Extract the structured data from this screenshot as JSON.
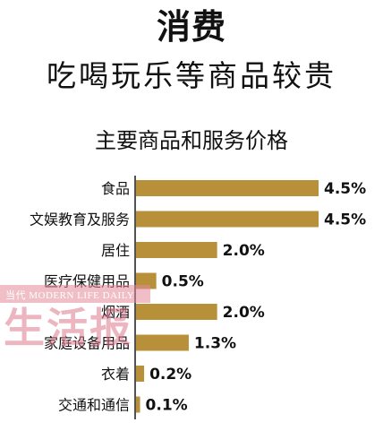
{
  "title": "消费",
  "subtitle": "吃喝玩乐等商品较贵",
  "watermark": {
    "small_text": "当代 MODERN LIFE DAILY",
    "big_text": "生活报"
  },
  "colors": {
    "bar": "#b8903a",
    "text": "#111111",
    "axis": "#1a1a1a"
  },
  "chart_data": {
    "type": "bar",
    "orientation": "horizontal",
    "title": "主要商品和服务价格",
    "xlabel": "",
    "ylabel": "",
    "unit": "%",
    "xlim": [
      0,
      4.5
    ],
    "grid": false,
    "categories": [
      "食品",
      "文娱教育及服务",
      "居住",
      "医疗保健用品",
      "烟酒",
      "家庭设备用品",
      "衣着",
      "交通和通信"
    ],
    "values": [
      4.5,
      4.5,
      2.0,
      0.5,
      2.0,
      1.3,
      0.2,
      0.1
    ],
    "value_labels": [
      "4.5%",
      "4.5%",
      "2.0%",
      "0.5%",
      "2.0%",
      "1.3%",
      "0.2%",
      "0.1%"
    ]
  }
}
